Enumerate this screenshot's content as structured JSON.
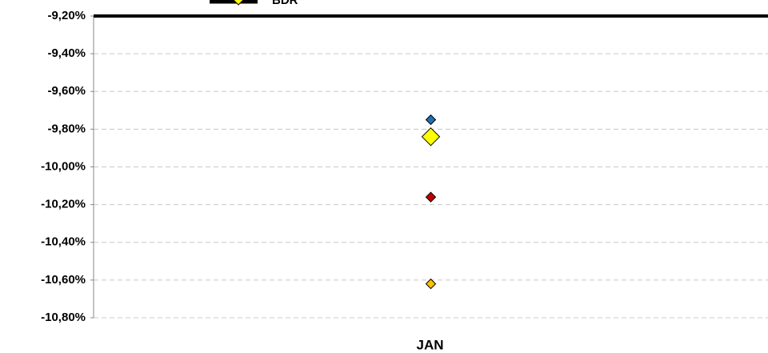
{
  "chart_data": {
    "type": "scatter",
    "categories": [
      "JAN"
    ],
    "series": [
      {
        "name": "BDR",
        "color": "#ffff00",
        "values": [
          -9.84
        ],
        "size": "large"
      },
      {
        "color": "#1f6fb4",
        "values": [
          -9.75
        ]
      },
      {
        "color": "#c00000",
        "values": [
          -10.16
        ]
      },
      {
        "color": "#ffc000",
        "values": [
          -10.62
        ]
      }
    ],
    "ylim": [
      -10.8,
      -9.2
    ],
    "yticks": [
      {
        "value": -9.2,
        "label": "-9,20%"
      },
      {
        "value": -9.4,
        "label": "-9,40%"
      },
      {
        "value": -9.6,
        "label": "-9,60%"
      },
      {
        "value": -9.8,
        "label": "-9,80%"
      },
      {
        "value": -10.0,
        "label": "-10,00%"
      },
      {
        "value": -10.2,
        "label": "-10,20%"
      },
      {
        "value": -10.4,
        "label": "-10,40%"
      },
      {
        "value": -10.6,
        "label": "-10,60%"
      },
      {
        "value": -10.8,
        "label": "-10,80%"
      }
    ],
    "grid": true
  }
}
